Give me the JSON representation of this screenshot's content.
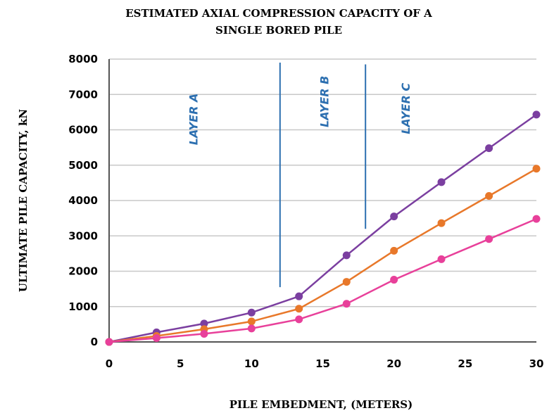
{
  "chart_data": {
    "type": "line",
    "title_lines": [
      "ESTIMATED AXIAL COMPRESSION CAPACITY OF A",
      "SINGLE BORED PILE"
    ],
    "xlabel": "PILE EMBEDMENT, (METERS)",
    "ylabel": "ULTIMATE PILE CAPACITY, kN",
    "xlim": [
      0,
      30
    ],
    "ylim": [
      0,
      8000
    ],
    "x_ticks": [
      "0",
      "5",
      "10",
      "15",
      "20",
      "25",
      "30"
    ],
    "y_ticks": [
      "0",
      "1000",
      "2000",
      "3000",
      "4000",
      "5000",
      "6000",
      "7000",
      "8000"
    ],
    "grid": "horizontal",
    "x": [
      0,
      3.33,
      6.67,
      10,
      13.33,
      16.67,
      20,
      23.33,
      26.67,
      30
    ],
    "series": [
      {
        "color": "#7b3fa0",
        "values": [
          0,
          270,
          520,
          830,
          1290,
          2450,
          3550,
          4520,
          5480,
          6430
        ]
      },
      {
        "color": "#e8782a",
        "values": [
          0,
          170,
          360,
          580,
          940,
          1700,
          2580,
          3360,
          4130,
          4900
        ]
      },
      {
        "color": "#e8409a",
        "values": [
          0,
          110,
          230,
          380,
          640,
          1080,
          1760,
          2340,
          2910,
          3480
        ]
      }
    ],
    "layer_boundaries": [
      {
        "x": 12,
        "y_range": [
          1550,
          7900
        ]
      },
      {
        "x": 18,
        "y_range": [
          3200,
          7850
        ]
      }
    ],
    "layer_labels": [
      {
        "text": "LAYER  A",
        "x": 6.2,
        "y": 6300
      },
      {
        "text": "LAYER  B",
        "x": 15.4,
        "y": 6800
      },
      {
        "text": "LAYER  C",
        "x": 21.1,
        "y": 6600
      }
    ],
    "annotation_color": "#2c6fb0",
    "axis_color": "#555555",
    "grid_color": "#c8c8c8"
  }
}
